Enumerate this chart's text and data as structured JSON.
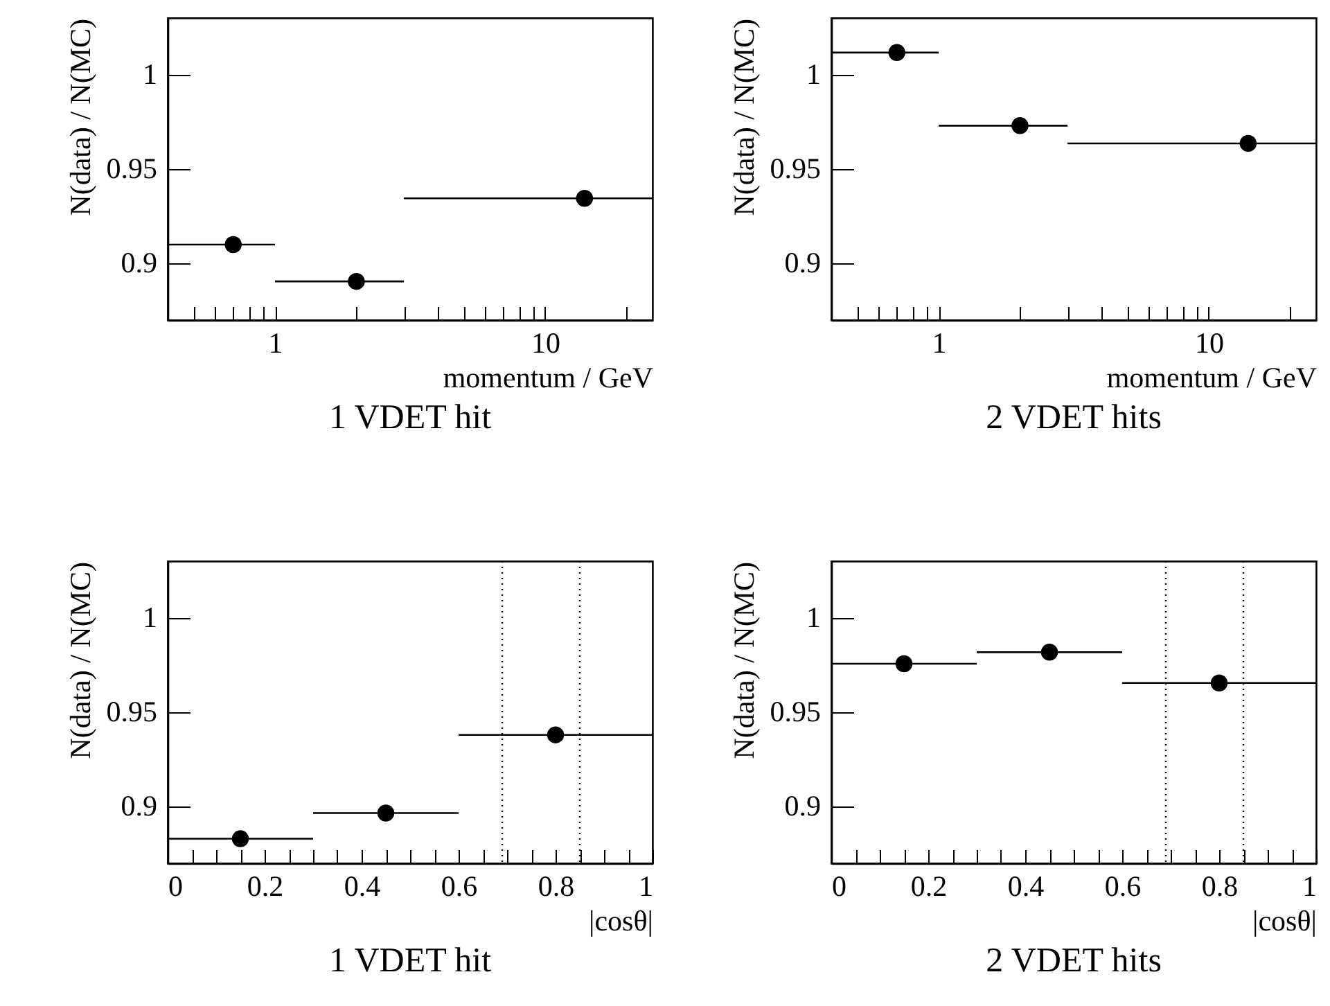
{
  "chart_data": [
    {
      "type": "scatter",
      "title": "1 VDET hit",
      "xlabel": "momentum / GeV",
      "ylabel": "N(data) / N(MC)",
      "log": "x",
      "marker": "circle",
      "grid": false,
      "x": [
        0.7,
        2,
        14
      ],
      "values": [
        0.91,
        0.8905,
        0.9345
      ],
      "xerrors": [
        [
          0.4,
          1
        ],
        [
          1,
          3
        ],
        [
          3,
          25
        ]
      ],
      "color": "#000000",
      "xlim": [
        0.4,
        25
      ],
      "ylim": [
        0.87,
        1.03
      ],
      "yticks": [
        0.9,
        0.95,
        1
      ],
      "xticks": [
        {
          "value": 0.5,
          "label": null
        },
        {
          "value": 0.6,
          "label": null
        },
        {
          "value": 0.7,
          "label": null
        },
        {
          "value": 0.8,
          "label": null
        },
        {
          "value": 0.9,
          "label": null
        },
        1,
        {
          "value": 2,
          "label": null
        },
        {
          "value": 3,
          "label": null
        },
        {
          "value": 4,
          "label": null
        },
        {
          "value": 5,
          "label": null
        },
        {
          "value": 6,
          "label": null
        },
        {
          "value": 7,
          "label": null
        },
        {
          "value": 8,
          "label": null
        },
        {
          "value": 9,
          "label": null
        },
        10,
        {
          "value": 20,
          "label": null
        }
      ]
    },
    {
      "type": "scatter",
      "title": "2 VDET hits",
      "xlabel": "momentum  / GeV",
      "ylabel": "N(data) / N(MC)",
      "log": "x",
      "marker": "circle",
      "grid": false,
      "x": [
        0.7,
        2,
        14
      ],
      "values": [
        1.0117,
        0.973,
        0.9636
      ],
      "xerrors": [
        [
          0.4,
          1
        ],
        [
          1,
          3
        ],
        [
          3,
          25
        ]
      ],
      "color": "#000000",
      "xlim": [
        0.4,
        25
      ],
      "ylim": [
        0.87,
        1.03
      ],
      "yticks": [
        0.9,
        0.95,
        1
      ],
      "xticks": [
        {
          "value": 0.5,
          "label": null
        },
        {
          "value": 0.6,
          "label": null
        },
        {
          "value": 0.7,
          "label": null
        },
        {
          "value": 0.8,
          "label": null
        },
        {
          "value": 0.9,
          "label": null
        },
        1,
        {
          "value": 2,
          "label": null
        },
        {
          "value": 3,
          "label": null
        },
        {
          "value": 4,
          "label": null
        },
        {
          "value": 5,
          "label": null
        },
        {
          "value": 6,
          "label": null
        },
        {
          "value": 7,
          "label": null
        },
        {
          "value": 8,
          "label": null
        },
        {
          "value": 9,
          "label": null
        },
        10,
        {
          "value": 20,
          "label": null
        }
      ]
    },
    {
      "type": "scatter",
      "title": "1 VDET hit",
      "xlabel": "|cosθ|",
      "ylabel": "N(data) / N(MC)",
      "marker": "circle",
      "grid": false,
      "x": [
        0.15,
        0.45,
        0.8
      ],
      "values": [
        0.883,
        0.8966,
        0.938
      ],
      "xerrors": [
        [
          0,
          0.3
        ],
        [
          0.3,
          0.6
        ],
        [
          0.6,
          1
        ]
      ],
      "color": "#000000",
      "xlim": [
        0,
        1
      ],
      "ylim": [
        0.87,
        1.03
      ],
      "yticks": [
        0.9,
        0.95,
        1
      ],
      "xticks": [
        0,
        {
          "value": 0.05,
          "label": null
        },
        {
          "value": 0.1,
          "label": null
        },
        {
          "value": 0.15,
          "label": null
        },
        0.2,
        {
          "value": 0.25,
          "label": null
        },
        {
          "value": 0.3,
          "label": null
        },
        {
          "value": 0.35,
          "label": null
        },
        0.4,
        {
          "value": 0.45,
          "label": null
        },
        {
          "value": 0.5,
          "label": null
        },
        {
          "value": 0.55,
          "label": null
        },
        0.6,
        {
          "value": 0.65,
          "label": null
        },
        {
          "value": 0.7,
          "label": null
        },
        {
          "value": 0.75,
          "label": null
        },
        0.8,
        {
          "value": 0.85,
          "label": null
        },
        {
          "value": 0.9,
          "label": null
        },
        {
          "value": 0.95,
          "label": null
        },
        1
      ],
      "ref_lines": [
        {
          "axis": "x",
          "value": 0.69,
          "color": "#000000",
          "line_style": "dotted"
        },
        {
          "axis": "x",
          "value": 0.85,
          "color": "#000000",
          "line_style": "dotted"
        }
      ]
    },
    {
      "type": "scatter",
      "title": "2 VDET hits",
      "xlabel": "|cosθ|",
      "ylabel": "N(data) / N(MC)",
      "marker": "circle",
      "grid": false,
      "x": [
        0.15,
        0.45,
        0.8
      ],
      "values": [
        0.9757,
        0.9818,
        0.9655
      ],
      "xerrors": [
        [
          0,
          0.3
        ],
        [
          0.3,
          0.6
        ],
        [
          0.6,
          1
        ]
      ],
      "color": "#000000",
      "xlim": [
        0,
        1
      ],
      "ylim": [
        0.87,
        1.03
      ],
      "yticks": [
        0.9,
        0.95,
        1
      ],
      "xticks": [
        0,
        {
          "value": 0.05,
          "label": null
        },
        {
          "value": 0.1,
          "label": null
        },
        {
          "value": 0.15,
          "label": null
        },
        0.2,
        {
          "value": 0.25,
          "label": null
        },
        {
          "value": 0.3,
          "label": null
        },
        {
          "value": 0.35,
          "label": null
        },
        0.4,
        {
          "value": 0.45,
          "label": null
        },
        {
          "value": 0.5,
          "label": null
        },
        {
          "value": 0.55,
          "label": null
        },
        0.6,
        {
          "value": 0.65,
          "label": null
        },
        {
          "value": 0.7,
          "label": null
        },
        {
          "value": 0.75,
          "label": null
        },
        0.8,
        {
          "value": 0.85,
          "label": null
        },
        {
          "value": 0.9,
          "label": null
        },
        {
          "value": 0.95,
          "label": null
        },
        1
      ],
      "ref_lines": [
        {
          "axis": "x",
          "value": 0.69,
          "color": "#000000",
          "line_style": "dotted"
        },
        {
          "axis": "x",
          "value": 0.85,
          "color": "#000000",
          "line_style": "dotted"
        }
      ]
    }
  ]
}
